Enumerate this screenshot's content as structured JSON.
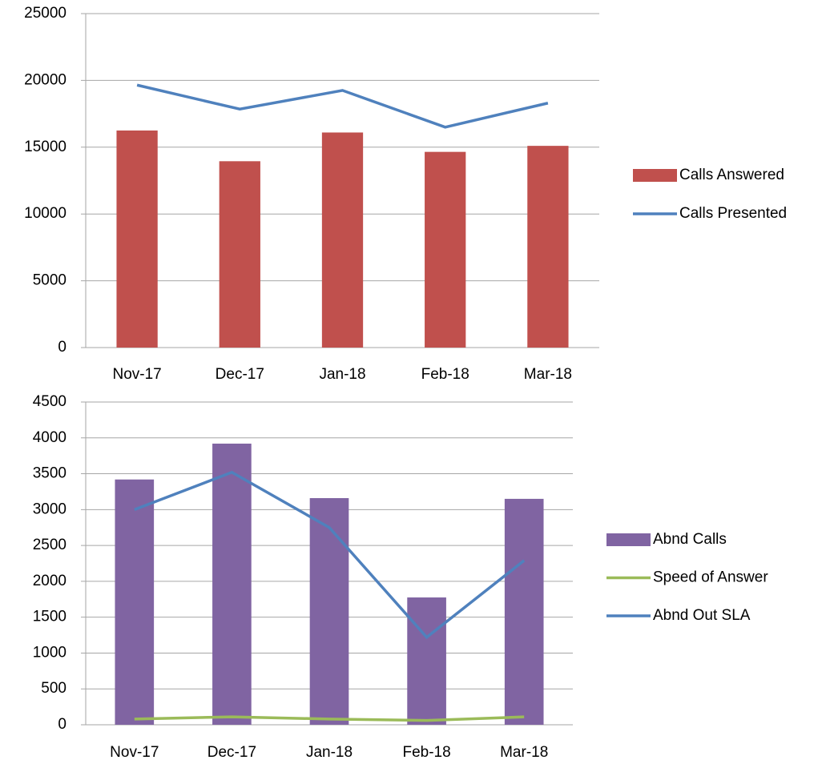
{
  "chart_data": [
    {
      "type": "bar",
      "categories": [
        "Nov-17",
        "Dec-17",
        "Jan-18",
        "Feb-18",
        "Mar-18"
      ],
      "series": [
        {
          "name": "Calls Answered",
          "type": "bar",
          "color": "#c0504d",
          "values": [
            16250,
            13950,
            16100,
            14650,
            15100
          ]
        },
        {
          "name": "Calls Presented",
          "type": "line",
          "color": "#4f81bd",
          "values": [
            19650,
            17850,
            19250,
            16500,
            18300
          ]
        }
      ],
      "ylim": [
        0,
        25000
      ],
      "yticks": [
        0,
        5000,
        10000,
        15000,
        20000,
        25000
      ],
      "grid": true,
      "legend": "right"
    },
    {
      "type": "bar",
      "categories": [
        "Nov-17",
        "Dec-17",
        "Jan-18",
        "Feb-18",
        "Mar-18"
      ],
      "series": [
        {
          "name": "Abnd Calls",
          "type": "bar",
          "color": "#8064a2",
          "values": [
            3420,
            3920,
            3160,
            1775,
            3150
          ]
        },
        {
          "name": "Speed of Answer",
          "type": "line",
          "color": "#9bbb59",
          "values": [
            80,
            110,
            80,
            60,
            110
          ]
        },
        {
          "name": "Abnd Out SLA",
          "type": "line",
          "color": "#4f81bd",
          "values": [
            3000,
            3520,
            2750,
            1220,
            2290
          ]
        }
      ],
      "ylim": [
        0,
        4500
      ],
      "yticks": [
        0,
        500,
        1000,
        1500,
        2000,
        2500,
        3000,
        3500,
        4000,
        4500
      ],
      "grid": true,
      "legend": "right"
    }
  ]
}
